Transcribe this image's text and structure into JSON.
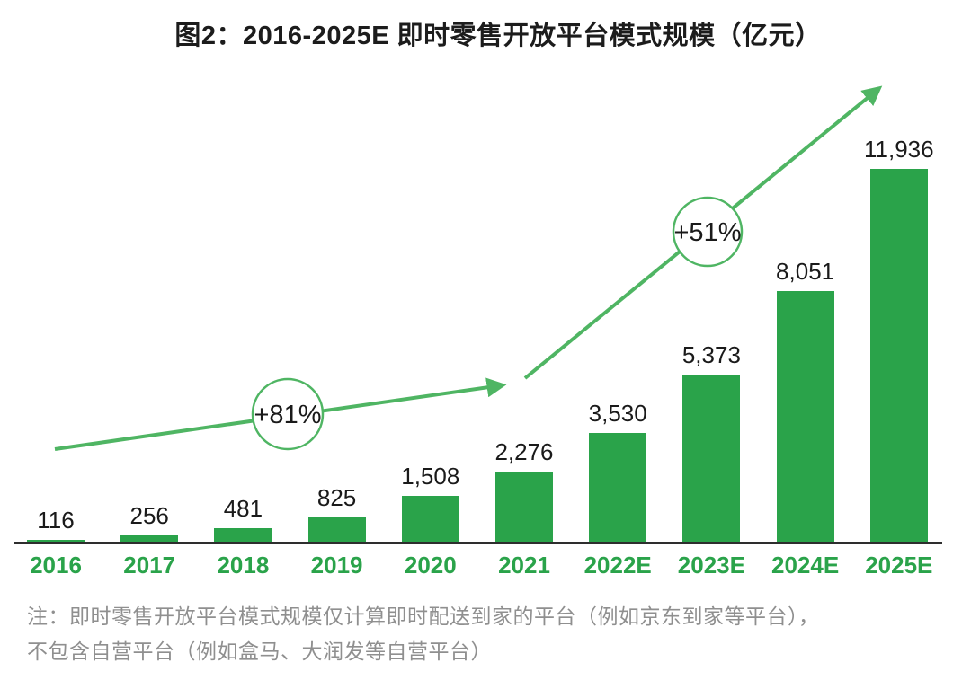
{
  "title": "图2：2016-2025E 即时零售开放平台模式规模（亿元）",
  "chart_data": {
    "type": "bar",
    "title": "图2：2016-2025E 即时零售开放平台模式规模（亿元）",
    "unit": "亿元",
    "categories": [
      "2016",
      "2017",
      "2018",
      "2019",
      "2020",
      "2021",
      "2022E",
      "2023E",
      "2024E",
      "2025E"
    ],
    "values": [
      116,
      256,
      481,
      825,
      1508,
      2276,
      3530,
      5373,
      8051,
      11936
    ],
    "value_labels": [
      "116",
      "256",
      "481",
      "825",
      "1,508",
      "2,276",
      "3,530",
      "5,373",
      "8,051",
      "11,936"
    ],
    "ylim": [
      0,
      12400
    ],
    "grid": false,
    "legend": "none",
    "annotations": [
      {
        "label": "+81%",
        "segment": "2016-2021"
      },
      {
        "label": "+51%",
        "segment": "2021-2025E"
      }
    ]
  },
  "note": {
    "line1": "注：即时零售开放平台模式规模仅计算即时配送到家的平台（例如京东到家等平台），",
    "line2": "不包含自营平台（例如盒马、大润发等自营平台）"
  },
  "colors": {
    "bar": "#2aa34a",
    "category_text": "#2aa34a",
    "arrow": "#4fb563",
    "axis": "#2e2e2e",
    "value_text": "#1a1a1a",
    "note_text": "#8f8f8f"
  }
}
